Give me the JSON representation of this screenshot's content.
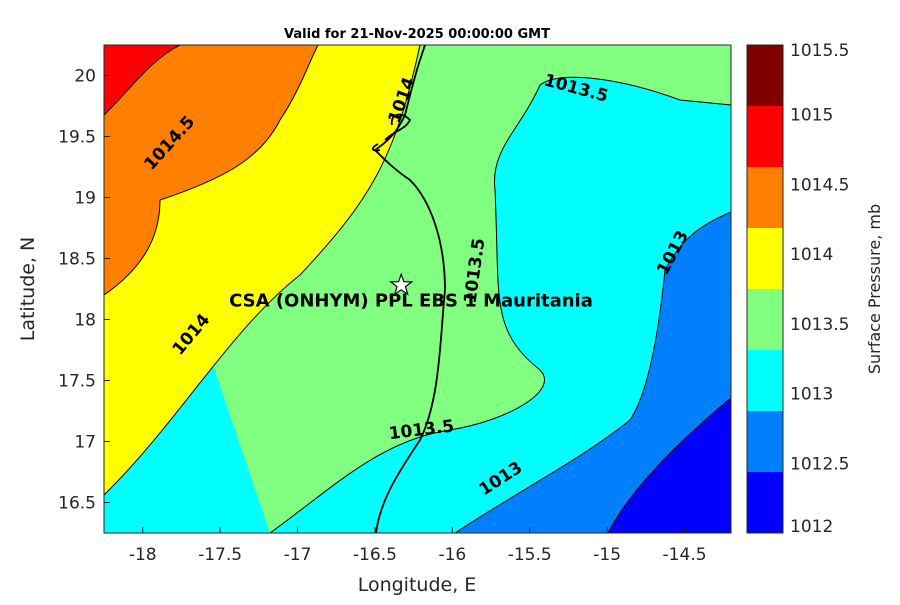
{
  "title": "Valid for 21-Nov-2025 00:00:00 GMT",
  "map": {
    "xlabel": "Longitude, E",
    "ylabel": "Latitude, N",
    "xlim": [
      -18.25,
      -14.2
    ],
    "ylim": [
      16.25,
      20.25
    ],
    "xticks": [
      -18,
      -17.5,
      -17,
      -16.5,
      -16,
      -15.5,
      -15,
      -14.5
    ],
    "yticks": [
      16.5,
      17,
      17.5,
      18,
      18.5,
      19,
      19.5,
      20
    ],
    "xtick_labels": [
      "-18",
      "-17.5",
      "-17",
      "-16.5",
      "-16",
      "-15.5",
      "-15",
      "-14.5"
    ],
    "ytick_labels": [
      "16.5",
      "17",
      "17.5",
      "18",
      "18.5",
      "19",
      "19.5",
      "20"
    ],
    "station": {
      "label": "CSA (ONHYM) PPL EBS 1 Mauritania",
      "lon": -16.33,
      "lat": 18.28
    },
    "contour_labels": [
      {
        "text": "1014.5",
        "lon": -17.83,
        "lat": 19.45,
        "angle": -48
      },
      {
        "text": "1014",
        "lon": -16.33,
        "lat": 19.8,
        "angle": -70
      },
      {
        "text": "1014",
        "lon": -17.69,
        "lat": 17.88,
        "angle": -50
      },
      {
        "text": "1013.5",
        "lon": -15.2,
        "lat": 19.9,
        "angle": 15
      },
      {
        "text": "1013.5",
        "lon": -15.86,
        "lat": 18.4,
        "angle": -82
      },
      {
        "text": "1013.5",
        "lon": -16.2,
        "lat": 17.1,
        "angle": -7
      },
      {
        "text": "1013",
        "lon": -14.58,
        "lat": 18.55,
        "angle": -62
      },
      {
        "text": "1013",
        "lon": -15.69,
        "lat": 16.7,
        "angle": -33
      }
    ]
  },
  "colorbar": {
    "label": "Surface Pressure, mb",
    "levels": [
      "1012",
      "1012.5",
      "1013",
      "1013.5",
      "1014",
      "1014.5",
      "1015",
      "1015.5"
    ],
    "colors": [
      "#0000ff",
      "#0080ff",
      "#00ffff",
      "#80ff80",
      "#ffff00",
      "#ff8000",
      "#ff0000",
      "#800000"
    ]
  }
}
